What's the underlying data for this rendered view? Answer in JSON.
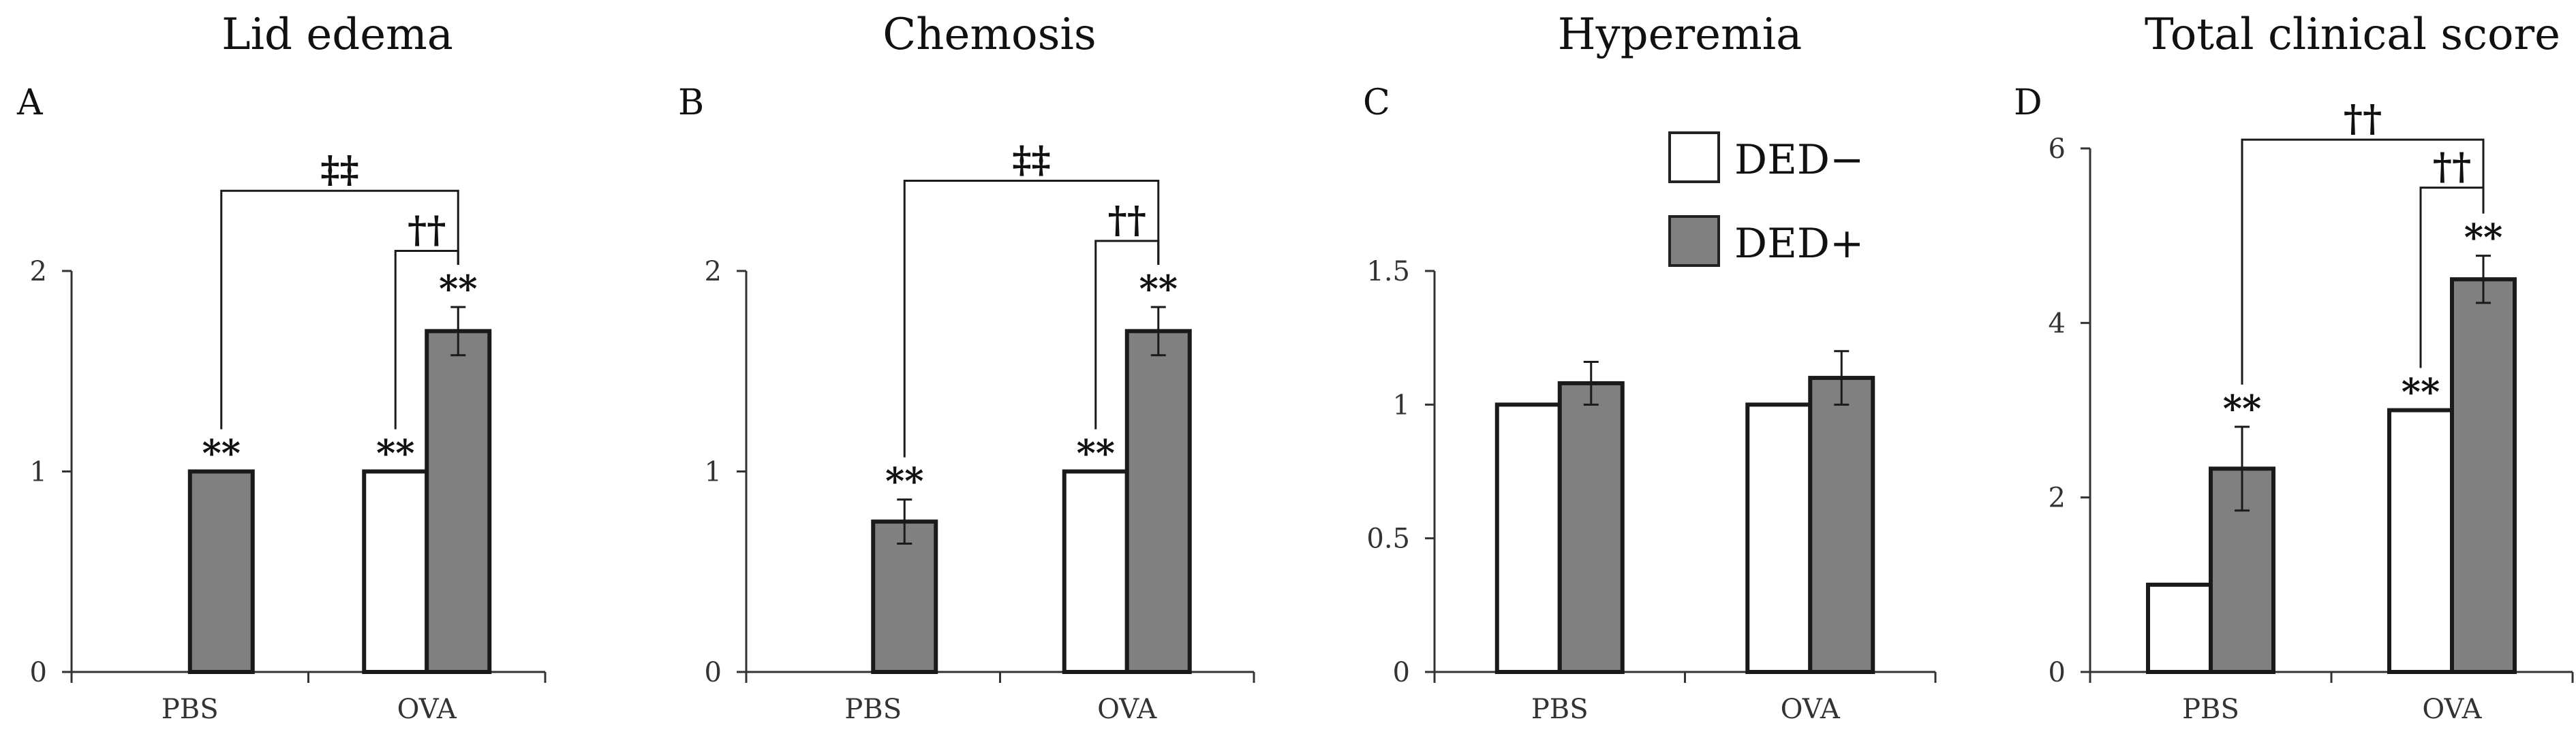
{
  "chart_data": [
    {
      "type": "bar",
      "title": "Lid edema",
      "panel": "A",
      "categories": [
        "PBS",
        "OVA"
      ],
      "ylim": [
        0,
        2
      ],
      "yticks": [
        0,
        1,
        2
      ],
      "ytick_labels": [
        "0",
        "1",
        "2"
      ],
      "series": [
        {
          "name": "DED−",
          "color": "#ffffff",
          "values": [
            0,
            1.0
          ],
          "errors": [
            0,
            0
          ],
          "marks": [
            "",
            "**"
          ]
        },
        {
          "name": "DED+",
          "color": "#808080",
          "values": [
            1.0,
            1.7
          ],
          "errors": [
            0,
            0.12
          ],
          "marks": [
            "**",
            "**"
          ]
        }
      ],
      "brackets": [
        {
          "label": "‡‡",
          "from": [
            0,
            1
          ],
          "to": [
            1,
            1
          ],
          "level": 2.4
        },
        {
          "label": "††",
          "from": [
            1,
            0
          ],
          "to": [
            1,
            1
          ],
          "level": 2.1
        }
      ]
    },
    {
      "type": "bar",
      "title": "Chemosis",
      "panel": "B",
      "categories": [
        "PBS",
        "OVA"
      ],
      "ylim": [
        0,
        2
      ],
      "yticks": [
        0,
        1,
        2
      ],
      "ytick_labels": [
        "0",
        "1",
        "2"
      ],
      "series": [
        {
          "name": "DED−",
          "color": "#ffffff",
          "values": [
            0,
            1.0
          ],
          "errors": [
            0,
            0
          ],
          "marks": [
            "",
            "**"
          ]
        },
        {
          "name": "DED+",
          "color": "#808080",
          "values": [
            0.75,
            1.7
          ],
          "errors": [
            0.11,
            0.12
          ],
          "marks": [
            "**",
            "**"
          ]
        }
      ],
      "brackets": [
        {
          "label": "‡‡",
          "from": [
            0,
            1
          ],
          "to": [
            1,
            1
          ],
          "level": 2.45
        },
        {
          "label": "††",
          "from": [
            1,
            0
          ],
          "to": [
            1,
            1
          ],
          "level": 2.15
        }
      ]
    },
    {
      "type": "bar",
      "title": "Hyperemia",
      "panel": "C",
      "categories": [
        "PBS",
        "OVA"
      ],
      "ylim": [
        0,
        1.5
      ],
      "yticks": [
        0,
        0.5,
        1,
        1.5
      ],
      "ytick_labels": [
        "0",
        "0.5",
        "1",
        "1.5"
      ],
      "series": [
        {
          "name": "DED−",
          "color": "#ffffff",
          "values": [
            1.0,
            1.0
          ],
          "errors": [
            0,
            0
          ],
          "marks": [
            "",
            ""
          ]
        },
        {
          "name": "DED+",
          "color": "#808080",
          "values": [
            1.08,
            1.1
          ],
          "errors": [
            0.08,
            0.1
          ],
          "marks": [
            "",
            ""
          ]
        }
      ],
      "brackets": []
    },
    {
      "type": "bar",
      "title": "Total clinical score",
      "panel": "D",
      "categories": [
        "PBS",
        "OVA"
      ],
      "ylim": [
        0,
        6
      ],
      "yticks": [
        0,
        2,
        4,
        6
      ],
      "ytick_labels": [
        "0",
        "2",
        "4",
        "6"
      ],
      "series": [
        {
          "name": "DED−",
          "color": "#ffffff",
          "values": [
            1.0,
            3.0
          ],
          "errors": [
            0,
            0
          ],
          "marks": [
            "",
            "**"
          ]
        },
        {
          "name": "DED+",
          "color": "#808080",
          "values": [
            2.33,
            4.5
          ],
          "errors": [
            0.48,
            0.27
          ],
          "marks": [
            "**",
            "**"
          ]
        }
      ],
      "brackets": [
        {
          "label": "††",
          "from": [
            0,
            1
          ],
          "to": [
            1,
            1
          ],
          "level": 6.1
        },
        {
          "label": "††",
          "from": [
            1,
            0
          ],
          "to": [
            1,
            1
          ],
          "level": 5.55
        }
      ]
    }
  ],
  "legend": {
    "placement": "top-right of panel C",
    "items": [
      {
        "label": "DED−",
        "color": "#ffffff"
      },
      {
        "label": "DED+",
        "color": "#808080"
      }
    ]
  }
}
